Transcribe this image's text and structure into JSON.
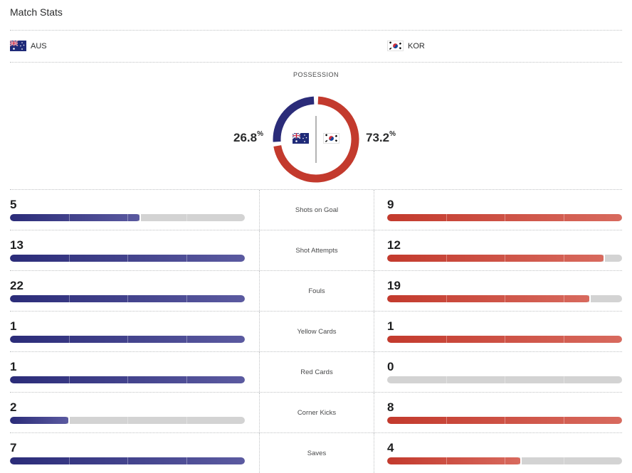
{
  "header": {
    "title": "Match Stats"
  },
  "teams": {
    "home": {
      "abbr": "AUS",
      "flag_icon": "australia-flag-icon",
      "color": "#2b2c79"
    },
    "away": {
      "abbr": "KOR",
      "flag_icon": "south-korea-flag-icon",
      "color": "#c33a2d"
    }
  },
  "possession": {
    "label": "POSSESSION",
    "home_value": "26.8",
    "away_value": "73.2",
    "unit": "%",
    "home_fraction": 0.268,
    "away_fraction": 0.732
  },
  "stats": [
    {
      "label": "Shots on Goal",
      "home": "5",
      "away": "9",
      "home_fill": 0.556,
      "away_fill": 1.0
    },
    {
      "label": "Shot Attempts",
      "home": "13",
      "away": "12",
      "home_fill": 1.0,
      "away_fill": 0.923
    },
    {
      "label": "Fouls",
      "home": "22",
      "away": "19",
      "home_fill": 1.0,
      "away_fill": 0.864
    },
    {
      "label": "Yellow Cards",
      "home": "1",
      "away": "1",
      "home_fill": 1.0,
      "away_fill": 1.0
    },
    {
      "label": "Red Cards",
      "home": "1",
      "away": "0",
      "home_fill": 1.0,
      "away_fill": 0.0
    },
    {
      "label": "Corner Kicks",
      "home": "2",
      "away": "8",
      "home_fill": 0.25,
      "away_fill": 1.0
    },
    {
      "label": "Saves",
      "home": "7",
      "away": "4",
      "home_fill": 1.0,
      "away_fill": 0.571
    }
  ]
}
